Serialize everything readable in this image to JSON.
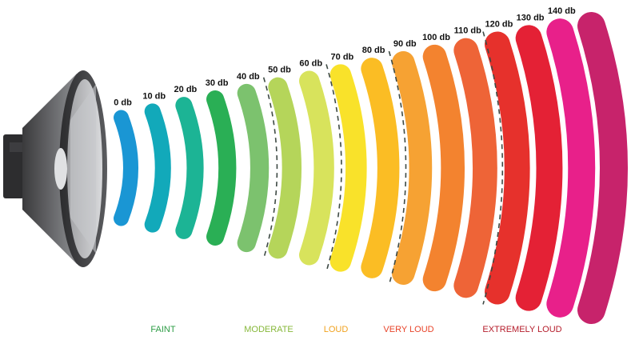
{
  "bands": [
    {
      "label": "0 db",
      "color": "#1a96d4"
    },
    {
      "label": "10 db",
      "color": "#12a9ba"
    },
    {
      "label": "20 db",
      "color": "#1cb495"
    },
    {
      "label": "30 db",
      "color": "#2aaf55"
    },
    {
      "label": "40 db",
      "color": "#7cc26e"
    },
    {
      "label": "50 db",
      "color": "#b5d55a"
    },
    {
      "label": "60 db",
      "color": "#d8e35c"
    },
    {
      "label": "70 db",
      "color": "#f9e22a"
    },
    {
      "label": "80 db",
      "color": "#fbbd24"
    },
    {
      "label": "90 db",
      "color": "#f6a233"
    },
    {
      "label": "100 db",
      "color": "#f3832f"
    },
    {
      "label": "110 db",
      "color": "#ee6437"
    },
    {
      "label": "120 db",
      "color": "#e6312c"
    },
    {
      "label": "130 db",
      "color": "#e42135"
    },
    {
      "label": "140 db",
      "color": "#e8208a"
    },
    {
      "label": "",
      "color": "#c7236b"
    }
  ],
  "categories": [
    {
      "label": "FAINT",
      "color": "#2e9d46"
    },
    {
      "label": "MODERATE",
      "color": "#87b83b"
    },
    {
      "label": "LOUD",
      "color": "#f0a21f"
    },
    {
      "label": "VERY LOUD",
      "color": "#e8442a"
    },
    {
      "label": "EXTREMELY LOUD",
      "color": "#b51d2b"
    }
  ],
  "icons": {
    "speaker": "speaker-icon"
  }
}
